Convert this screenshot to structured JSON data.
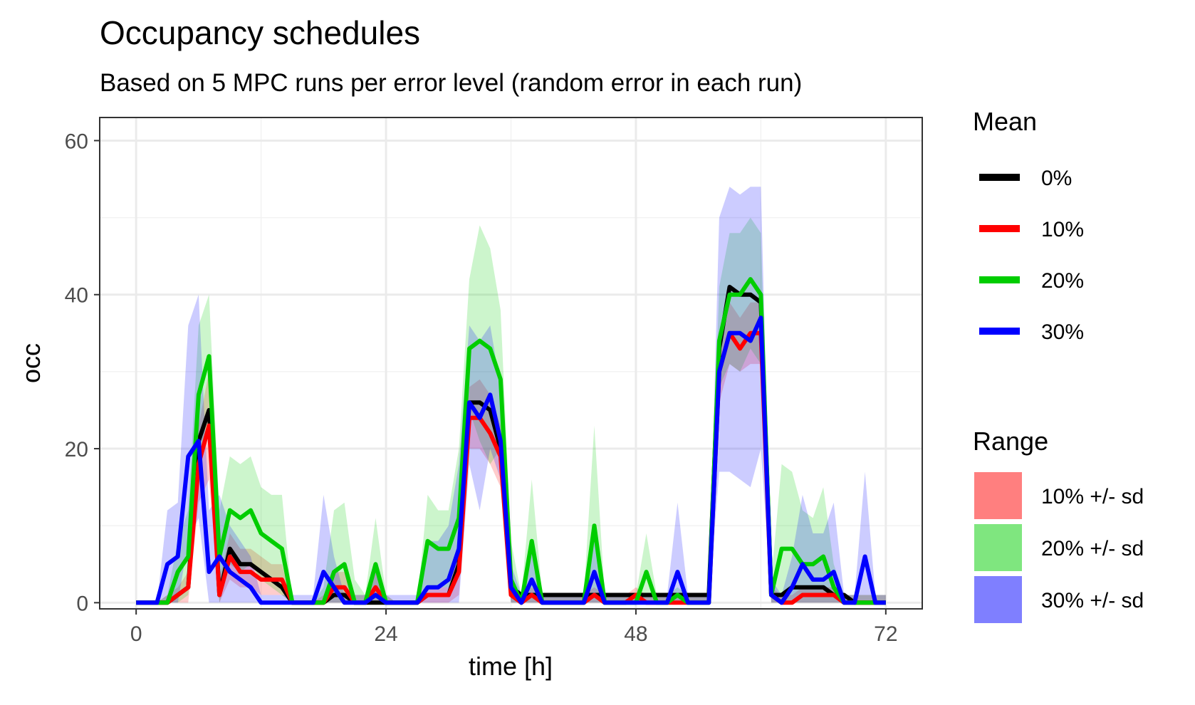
{
  "chart_data": {
    "type": "line",
    "title": "Occupancy schedules",
    "subtitle": "Based on 5 MPC runs per error level (random error in each run)",
    "xlabel": "time [h]",
    "ylabel": "occ",
    "xlim": [
      -3.5,
      75.5
    ],
    "ylim": [
      -0.8,
      63
    ],
    "x_ticks": [
      0,
      24,
      48,
      72
    ],
    "y_ticks": [
      0,
      20,
      40,
      60
    ],
    "grid": true,
    "legend_position": "right",
    "mean_legend_title": "Mean",
    "range_legend_title": "Range",
    "x": [
      0,
      1,
      2,
      3,
      4,
      5,
      6,
      7,
      8,
      9,
      10,
      11,
      12,
      13,
      14,
      15,
      16,
      17,
      18,
      19,
      20,
      21,
      22,
      23,
      24,
      25,
      26,
      27,
      28,
      29,
      30,
      31,
      32,
      33,
      34,
      35,
      36,
      37,
      38,
      39,
      40,
      41,
      42,
      43,
      44,
      45,
      46,
      47,
      48,
      49,
      50,
      51,
      52,
      53,
      54,
      55,
      56,
      57,
      58,
      59,
      60,
      61,
      62,
      63,
      64,
      65,
      66,
      67,
      68,
      69,
      70,
      71,
      72
    ],
    "series": [
      {
        "name": "0%",
        "color": "#000000",
        "values": [
          0,
          0,
          0,
          0,
          1,
          2,
          21,
          25,
          1,
          7,
          5,
          5,
          4,
          3,
          2,
          0,
          0,
          0,
          0,
          1,
          1,
          0,
          0,
          0,
          0,
          0,
          0,
          0,
          1,
          1,
          1,
          5,
          26,
          26,
          25,
          20,
          2,
          1,
          1,
          1,
          1,
          1,
          1,
          1,
          1,
          1,
          1,
          1,
          1,
          1,
          1,
          1,
          1,
          1,
          1,
          1,
          33,
          41,
          40,
          40,
          39,
          1,
          1,
          2,
          2,
          2,
          2,
          1,
          1,
          0,
          0,
          0,
          0
        ]
      },
      {
        "name": "10%",
        "color": "#ff0000",
        "values": [
          0,
          0,
          0,
          0,
          1,
          2,
          18,
          23,
          1,
          6,
          4,
          4,
          3,
          3,
          3,
          0,
          0,
          0,
          0,
          2,
          2,
          0,
          0,
          2,
          0,
          0,
          0,
          0,
          1,
          1,
          1,
          4,
          24,
          24,
          22,
          19,
          1,
          0,
          1,
          0,
          0,
          0,
          0,
          0,
          1,
          0,
          0,
          0,
          1,
          0,
          0,
          0,
          0,
          0,
          0,
          0,
          30,
          35,
          33,
          35,
          35,
          1,
          0,
          0,
          1,
          1,
          1,
          1,
          0,
          0,
          0,
          0,
          0
        ]
      },
      {
        "name": "20%",
        "color": "#00cd00",
        "values": [
          0,
          0,
          0,
          0,
          4,
          6,
          27,
          32,
          6,
          12,
          11,
          12,
          9,
          8,
          7,
          0,
          0,
          0,
          0,
          4,
          5,
          0,
          0,
          5,
          0,
          0,
          0,
          0,
          8,
          7,
          7,
          11,
          33,
          34,
          33,
          29,
          3,
          0,
          8,
          0,
          0,
          0,
          0,
          0,
          10,
          0,
          0,
          0,
          0,
          4,
          0,
          0,
          1,
          0,
          0,
          0,
          34,
          40,
          40,
          42,
          40,
          1,
          7,
          7,
          5,
          5,
          6,
          2,
          0,
          0,
          0,
          0,
          0
        ]
      },
      {
        "name": "30%",
        "color": "#0000ff",
        "values": [
          0,
          0,
          0,
          5,
          6,
          19,
          21,
          4,
          6,
          4,
          3,
          2,
          0,
          0,
          0,
          0,
          0,
          0,
          4,
          2,
          0,
          0,
          0,
          1,
          0,
          0,
          0,
          0,
          2,
          2,
          3,
          7,
          26,
          24,
          27,
          21,
          2,
          0,
          3,
          0,
          0,
          0,
          0,
          0,
          4,
          0,
          0,
          0,
          0,
          0,
          0,
          0,
          4,
          0,
          0,
          0,
          30,
          35,
          35,
          34,
          37,
          1,
          0,
          2,
          5,
          3,
          3,
          4,
          0,
          0,
          6,
          0,
          0
        ]
      }
    ],
    "ranges": [
      {
        "name": "10% +/- sd",
        "color": "#ff0000",
        "lower": [
          0,
          0,
          0,
          0,
          0,
          0,
          13,
          16,
          0,
          3,
          2,
          2,
          1,
          1,
          1,
          0,
          0,
          0,
          0,
          0,
          0,
          0,
          0,
          0,
          0,
          0,
          0,
          0,
          0,
          0,
          0,
          1,
          20,
          20,
          18,
          15,
          0,
          0,
          0,
          0,
          0,
          0,
          0,
          0,
          0,
          0,
          0,
          0,
          0,
          0,
          0,
          0,
          0,
          0,
          0,
          0,
          26,
          31,
          30,
          31,
          31,
          0,
          0,
          0,
          0,
          0,
          0,
          0,
          0,
          0,
          0,
          0,
          0
        ],
        "upper": [
          0,
          0,
          0,
          1,
          2,
          4,
          23,
          30,
          3,
          9,
          7,
          7,
          6,
          5,
          5,
          0,
          0,
          0,
          1,
          4,
          4,
          1,
          1,
          4,
          1,
          0,
          0,
          0,
          2,
          2,
          2,
          7,
          28,
          29,
          27,
          23,
          3,
          1,
          2,
          1,
          1,
          1,
          1,
          1,
          2,
          1,
          1,
          1,
          2,
          1,
          1,
          1,
          1,
          1,
          1,
          1,
          34,
          39,
          37,
          39,
          39,
          2,
          1,
          1,
          2,
          2,
          2,
          2,
          1,
          1,
          1,
          1,
          1
        ]
      },
      {
        "name": "20% +/- sd",
        "color": "#00cd00",
        "lower": [
          0,
          0,
          0,
          0,
          0,
          1,
          19,
          24,
          0,
          5,
          4,
          5,
          3,
          2,
          1,
          0,
          0,
          0,
          0,
          0,
          0,
          0,
          0,
          0,
          0,
          0,
          0,
          0,
          2,
          2,
          2,
          4,
          25,
          21,
          18,
          20,
          0,
          0,
          0,
          0,
          0,
          0,
          0,
          0,
          0,
          0,
          0,
          0,
          0,
          0,
          0,
          0,
          0,
          0,
          0,
          0,
          28,
          31,
          30,
          33,
          31,
          0,
          0,
          0,
          0,
          0,
          0,
          0,
          0,
          0,
          0,
          0,
          0
        ],
        "upper": [
          0,
          0,
          0,
          1,
          8,
          12,
          36,
          40,
          12,
          19,
          18,
          19,
          15,
          14,
          14,
          0,
          0,
          0,
          2,
          12,
          13,
          3,
          1,
          11,
          1,
          0,
          0,
          0,
          14,
          12,
          12,
          20,
          42,
          49,
          46,
          38,
          8,
          1,
          16,
          1,
          1,
          1,
          1,
          1,
          23,
          1,
          1,
          1,
          1,
          9,
          1,
          1,
          2,
          1,
          1,
          1,
          41,
          48,
          48,
          50,
          48,
          3,
          18,
          17,
          12,
          11,
          15,
          5,
          1,
          1,
          1,
          1,
          1
        ]
      },
      {
        "name": "30% +/- sd",
        "color": "#0000ff",
        "lower": [
          0,
          0,
          0,
          0,
          0,
          8,
          11,
          0,
          0,
          0,
          0,
          0,
          0,
          0,
          0,
          0,
          0,
          0,
          0,
          0,
          0,
          0,
          0,
          0,
          0,
          0,
          0,
          0,
          0,
          0,
          0,
          0,
          18,
          12,
          20,
          16,
          0,
          0,
          0,
          0,
          0,
          0,
          0,
          0,
          0,
          0,
          0,
          0,
          0,
          0,
          0,
          0,
          0,
          0,
          0,
          0,
          17,
          17,
          16,
          15,
          20,
          0,
          0,
          0,
          0,
          0,
          0,
          0,
          0,
          0,
          0,
          0,
          0
        ],
        "upper": [
          0,
          0,
          0,
          12,
          13,
          36,
          40,
          12,
          14,
          10,
          8,
          6,
          1,
          1,
          1,
          1,
          1,
          1,
          14,
          6,
          1,
          1,
          1,
          4,
          1,
          1,
          1,
          1,
          8,
          8,
          10,
          18,
          36,
          34,
          36,
          28,
          5,
          1,
          7,
          1,
          1,
          1,
          1,
          1,
          10,
          1,
          1,
          1,
          1,
          1,
          1,
          1,
          13,
          1,
          1,
          1,
          50,
          54,
          53,
          54,
          54,
          3,
          1,
          6,
          14,
          9,
          9,
          13,
          1,
          1,
          17,
          1,
          1
        ]
      }
    ]
  }
}
